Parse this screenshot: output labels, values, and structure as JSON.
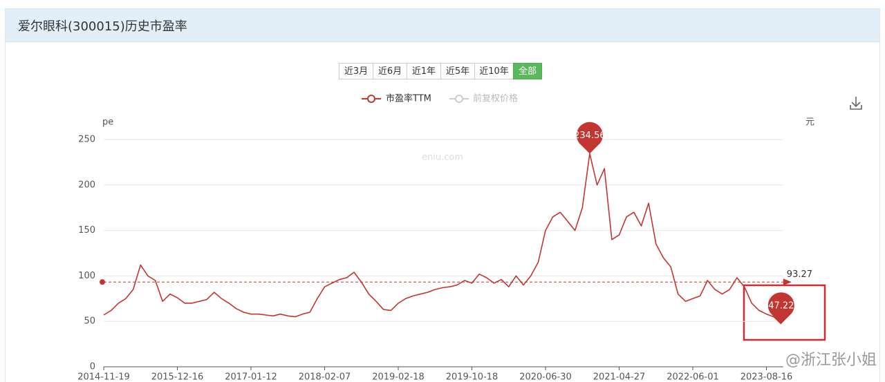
{
  "header": {
    "title": "爱尔眼科(300015)历史市盈率"
  },
  "range_buttons": [
    "近3月",
    "近6月",
    "近1年",
    "近5年",
    "近10年",
    "全部"
  ],
  "active_button": 5,
  "legend_inactive": "前复权价格",
  "watermarks": [
    "eniu.com",
    "@浙江张小姐"
  ],
  "chart_data": {
    "type": "line",
    "y_axis_name": "pe",
    "y2_axis_name": "元",
    "categories": [
      "2014-11-19",
      null,
      null,
      null,
      null,
      null,
      null,
      null,
      null,
      null,
      "2015-12-16",
      null,
      null,
      null,
      null,
      null,
      null,
      null,
      null,
      null,
      "2017-01-12",
      null,
      null,
      null,
      null,
      null,
      null,
      null,
      null,
      null,
      "2018-02-07",
      null,
      null,
      null,
      null,
      null,
      null,
      null,
      null,
      null,
      "2019-02-18",
      null,
      null,
      null,
      null,
      null,
      null,
      null,
      null,
      null,
      "2019-10-18",
      null,
      null,
      null,
      null,
      null,
      null,
      null,
      null,
      null,
      "2020-06-30",
      null,
      null,
      null,
      null,
      null,
      null,
      null,
      null,
      null,
      "2021-04-27",
      null,
      null,
      null,
      null,
      null,
      null,
      null,
      null,
      null,
      "2022-06-01",
      null,
      null,
      null,
      null,
      null,
      null,
      null,
      null,
      null,
      "2023-08-16",
      null,
      null
    ],
    "series": [
      {
        "name": "市盈率TTM",
        "color": "#c23531",
        "values": [
          57,
          62,
          70,
          75,
          85,
          112,
          100,
          95,
          72,
          80,
          76,
          70,
          70,
          72,
          74,
          82,
          75,
          70,
          64,
          60,
          58,
          58,
          57,
          56,
          58,
          56,
          55,
          58,
          60,
          75,
          88,
          92,
          96,
          98,
          104,
          93,
          80,
          72,
          63,
          62,
          70,
          75,
          78,
          80,
          82,
          85,
          87,
          88,
          90,
          95,
          92,
          102,
          98,
          92,
          96,
          88,
          100,
          90,
          100,
          115,
          150,
          165,
          170,
          160,
          150,
          175,
          234.56,
          200,
          218,
          140,
          145,
          165,
          170,
          155,
          180,
          135,
          120,
          110,
          80,
          72,
          75,
          78,
          95,
          85,
          80,
          85,
          98,
          88,
          70,
          62,
          58,
          55,
          47.22
        ]
      }
    ],
    "average": 93.27,
    "max_index": 66,
    "last_index": 92,
    "ylim": [
      0,
      250
    ],
    "yticks": [
      0,
      50,
      100,
      150,
      200,
      250
    ],
    "grid": true
  }
}
